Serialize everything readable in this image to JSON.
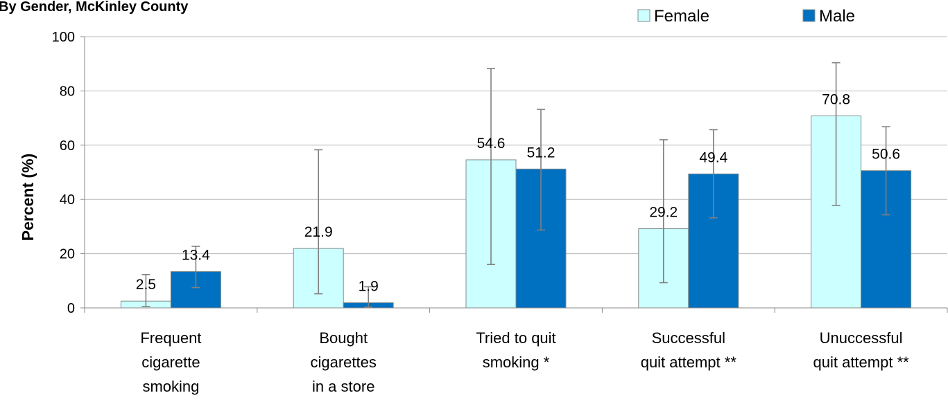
{
  "chart_data": {
    "type": "bar",
    "title": "By Gender, McKinley County",
    "ylabel": "Percent (%)",
    "xlabel": "",
    "ylim": [
      0,
      100
    ],
    "yticks": [
      0,
      20,
      40,
      60,
      80,
      100
    ],
    "grid": true,
    "legend_position": "top-right",
    "categories": [
      [
        "Frequent",
        "cigarette",
        "smoking"
      ],
      [
        "Bought",
        "cigarettes",
        "in a store"
      ],
      [
        "Tried to quit",
        "smoking *"
      ],
      [
        "Successful",
        "quit attempt **"
      ],
      [
        "Unuccessful",
        "quit attempt **"
      ]
    ],
    "series": [
      {
        "name": "Female",
        "color": "#ccffff",
        "values": [
          2.5,
          21.9,
          54.6,
          29.2,
          70.8
        ],
        "labels": [
          "2.5",
          "21.9",
          "54.6",
          "29.2",
          "70.8"
        ],
        "ci_low": [
          0.5,
          5.2,
          16.0,
          9.3,
          37.8
        ],
        "ci_high": [
          12.3,
          58.3,
          88.3,
          62.0,
          90.4
        ]
      },
      {
        "name": "Male",
        "color": "#0070c0",
        "values": [
          13.4,
          1.9,
          51.2,
          49.4,
          50.6
        ],
        "labels": [
          "13.4",
          "1.9",
          "51.2",
          "49.4",
          "50.6"
        ],
        "ci_low": [
          7.5,
          0.3,
          28.7,
          33.2,
          34.3
        ],
        "ci_high": [
          22.7,
          7.8,
          73.2,
          65.7,
          66.8
        ]
      }
    ]
  }
}
